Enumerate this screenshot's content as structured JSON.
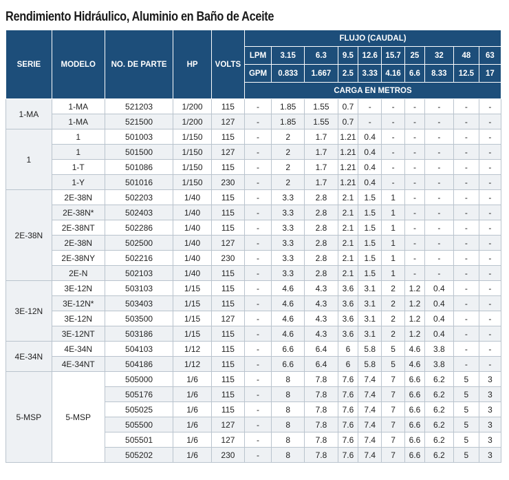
{
  "title": "Rendimiento Hidráulico, Aluminio en Baño de Aceite",
  "headers": {
    "serie": "SERIE",
    "modelo": "MODELO",
    "no_parte": "NO. DE PARTE",
    "hp": "HP",
    "volts": "VOLTS",
    "flujo": "FLUJO (CAUDAL)",
    "lpm_label": "LPM",
    "gpm_label": "GPM",
    "carga": "CARGA EN METROS",
    "lpm": [
      "3.15",
      "6.3",
      "9.5",
      "12.6",
      "15.7",
      "25",
      "32",
      "48",
      "63"
    ],
    "gpm": [
      "0.833",
      "1.667",
      "2.5",
      "3.33",
      "4.16",
      "6.6",
      "8.33",
      "12.5",
      "17"
    ]
  },
  "groups": [
    {
      "serie": "1-MA",
      "rows": [
        {
          "modelo": "1-MA",
          "parte": "521203",
          "hp": "1/200",
          "volts": "115",
          "carga": [
            "-",
            "1.85",
            "1.55",
            "0.7",
            "-",
            "-",
            "-",
            "-",
            "-",
            "-"
          ]
        },
        {
          "modelo": "1-MA",
          "parte": "521500",
          "hp": "1/200",
          "volts": "127",
          "carga": [
            "-",
            "1.85",
            "1.55",
            "0.7",
            "-",
            "-",
            "-",
            "-",
            "-",
            "-"
          ]
        }
      ]
    },
    {
      "serie": "1",
      "rows": [
        {
          "modelo": "1",
          "parte": "501003",
          "hp": "1/150",
          "volts": "115",
          "carga": [
            "-",
            "2",
            "1.7",
            "1.21",
            "0.4",
            "-",
            "-",
            "-",
            "-",
            "-"
          ]
        },
        {
          "modelo": "1",
          "parte": "501500",
          "hp": "1/150",
          "volts": "127",
          "carga": [
            "-",
            "2",
            "1.7",
            "1.21",
            "0.4",
            "-",
            "-",
            "-",
            "-",
            "-"
          ]
        },
        {
          "modelo": "1-T",
          "parte": "501086",
          "hp": "1/150",
          "volts": "115",
          "carga": [
            "-",
            "2",
            "1.7",
            "1.21",
            "0.4",
            "-",
            "-",
            "-",
            "-",
            "-"
          ]
        },
        {
          "modelo": "1-Y",
          "parte": "501016",
          "hp": "1/150",
          "volts": "230",
          "carga": [
            "-",
            "2",
            "1.7",
            "1.21",
            "0.4",
            "-",
            "-",
            "-",
            "-",
            "-"
          ]
        }
      ]
    },
    {
      "serie": "2E-38N",
      "rows": [
        {
          "modelo": "2E-38N",
          "parte": "502203",
          "hp": "1/40",
          "volts": "115",
          "carga": [
            "-",
            "3.3",
            "2.8",
            "2.1",
            "1.5",
            "1",
            "-",
            "-",
            "-",
            "-"
          ]
        },
        {
          "modelo": "2E-38N*",
          "parte": "502403",
          "hp": "1/40",
          "volts": "115",
          "carga": [
            "-",
            "3.3",
            "2.8",
            "2.1",
            "1.5",
            "1",
            "-",
            "-",
            "-",
            "-"
          ]
        },
        {
          "modelo": "2E-38NT",
          "parte": "502286",
          "hp": "1/40",
          "volts": "115",
          "carga": [
            "-",
            "3.3",
            "2.8",
            "2.1",
            "1.5",
            "1",
            "-",
            "-",
            "-",
            "-"
          ]
        },
        {
          "modelo": "2E-38N",
          "parte": "502500",
          "hp": "1/40",
          "volts": "127",
          "carga": [
            "-",
            "3.3",
            "2.8",
            "2.1",
            "1.5",
            "1",
            "-",
            "-",
            "-",
            "-"
          ]
        },
        {
          "modelo": "2E-38NY",
          "parte": "502216",
          "hp": "1/40",
          "volts": "230",
          "carga": [
            "-",
            "3.3",
            "2.8",
            "2.1",
            "1.5",
            "1",
            "-",
            "-",
            "-",
            "-"
          ]
        },
        {
          "modelo": "2E-N",
          "parte": "502103",
          "hp": "1/40",
          "volts": "115",
          "carga": [
            "-",
            "3.3",
            "2.8",
            "2.1",
            "1.5",
            "1",
            "-",
            "-",
            "-",
            "-"
          ]
        }
      ]
    },
    {
      "serie": "3E-12N",
      "rows": [
        {
          "modelo": "3E-12N",
          "parte": "503103",
          "hp": "1/15",
          "volts": "115",
          "carga": [
            "-",
            "4.6",
            "4.3",
            "3.6",
            "3.1",
            "2",
            "1.2",
            "0.4",
            "-",
            "-"
          ]
        },
        {
          "modelo": "3E-12N*",
          "parte": "503403",
          "hp": "1/15",
          "volts": "115",
          "carga": [
            "-",
            "4.6",
            "4.3",
            "3.6",
            "3.1",
            "2",
            "1.2",
            "0.4",
            "-",
            "-"
          ]
        },
        {
          "modelo": "3E-12N",
          "parte": "503500",
          "hp": "1/15",
          "volts": "127",
          "carga": [
            "-",
            "4.6",
            "4.3",
            "3.6",
            "3.1",
            "2",
            "1.2",
            "0.4",
            "-",
            "-"
          ]
        },
        {
          "modelo": "3E-12NT",
          "parte": "503186",
          "hp": "1/15",
          "volts": "115",
          "carga": [
            "-",
            "4.6",
            "4.3",
            "3.6",
            "3.1",
            "2",
            "1.2",
            "0.4",
            "-",
            "-"
          ]
        }
      ]
    },
    {
      "serie": "4E-34N",
      "rows": [
        {
          "modelo": "4E-34N",
          "parte": "504103",
          "hp": "1/12",
          "volts": "115",
          "carga": [
            "-",
            "6.6",
            "6.4",
            "6",
            "5.8",
            "5",
            "4.6",
            "3.8",
            "-",
            "-"
          ]
        },
        {
          "modelo": "4E-34NT",
          "parte": "504186",
          "hp": "1/12",
          "volts": "115",
          "carga": [
            "-",
            "6.6",
            "6.4",
            "6",
            "5.8",
            "5",
            "4.6",
            "3.8",
            "-",
            "-"
          ]
        }
      ]
    },
    {
      "serie": "5-MSP",
      "modelo_shared": "5-MSP",
      "rows": [
        {
          "parte": "505000",
          "hp": "1/6",
          "volts": "115",
          "carga": [
            "-",
            "8",
            "7.8",
            "7.6",
            "7.4",
            "7",
            "6.6",
            "6.2",
            "5",
            "3"
          ]
        },
        {
          "parte": "505176",
          "hp": "1/6",
          "volts": "115",
          "carga": [
            "-",
            "8",
            "7.8",
            "7.6",
            "7.4",
            "7",
            "6.6",
            "6.2",
            "5",
            "3"
          ]
        },
        {
          "parte": "505025",
          "hp": "1/6",
          "volts": "115",
          "carga": [
            "-",
            "8",
            "7.8",
            "7.6",
            "7.4",
            "7",
            "6.6",
            "6.2",
            "5",
            "3"
          ]
        },
        {
          "parte": "505500",
          "hp": "1/6",
          "volts": "127",
          "carga": [
            "-",
            "8",
            "7.8",
            "7.6",
            "7.4",
            "7",
            "6.6",
            "6.2",
            "5",
            "3"
          ]
        },
        {
          "parte": "505501",
          "hp": "1/6",
          "volts": "127",
          "carga": [
            "-",
            "8",
            "7.8",
            "7.6",
            "7.4",
            "7",
            "6.6",
            "6.2",
            "5",
            "3"
          ]
        },
        {
          "parte": "505202",
          "hp": "1/6",
          "volts": "230",
          "carga": [
            "-",
            "8",
            "7.8",
            "7.6",
            "7.4",
            "7",
            "6.6",
            "6.2",
            "5",
            "3"
          ]
        }
      ]
    }
  ],
  "colors": {
    "header_bg": "#1d4e7a",
    "stripe_bg": "#eef1f4",
    "border": "#b9c3cd"
  }
}
